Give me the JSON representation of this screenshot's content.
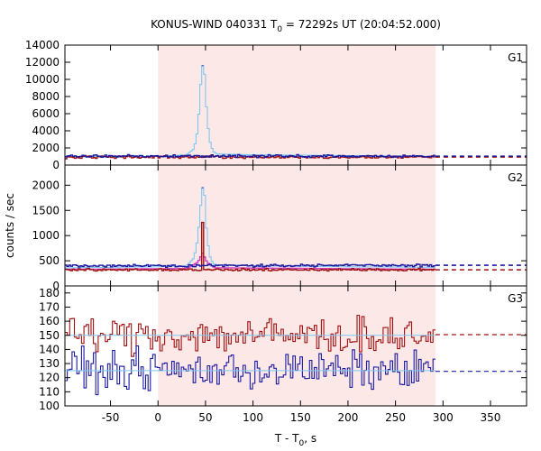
{
  "chart_data": {
    "type": "line",
    "title": {
      "prefix": "KONUS-WIND 040331 T",
      "sub": "0",
      "suffix": " = 72292s UT (20:04:52.000)"
    },
    "xlabel": {
      "prefix": "T - T",
      "sub": "0",
      "suffix": ", s"
    },
    "ylabel": "counts / sec",
    "x_ticks": [
      -50,
      0,
      50,
      100,
      150,
      200,
      250,
      300,
      350
    ],
    "xlim": [
      -98,
      388
    ],
    "highlight_interval": [
      0,
      292
    ],
    "colors": {
      "highlight": "#fde8e8",
      "profile": "#7ec8f0",
      "profile_dark": "#1f2ea8",
      "red": "#a01010",
      "blue": "#1a1aa0",
      "magenta": "#d040c0",
      "fit": "#7ec8f0"
    },
    "panels": [
      {
        "label": "G1",
        "ylim": [
          0,
          14000
        ],
        "y_ticks": [
          0,
          2000,
          4000,
          6000,
          8000,
          10000,
          12000,
          14000
        ],
        "background": 1000,
        "peak": {
          "t": 47,
          "value": 11600
        },
        "series": [
          {
            "color": "profile",
            "values": [
              [
                -98,
                1000
              ],
              [
                0,
                1000
              ],
              [
                30,
                1200
              ],
              [
                38,
                1900
              ],
              [
                42,
                4200
              ],
              [
                45,
                9400
              ],
              [
                47,
                11600
              ],
              [
                49,
                10600
              ],
              [
                51,
                6800
              ],
              [
                54,
                3000
              ],
              [
                58,
                1600
              ],
              [
                62,
                1300
              ],
              [
                100,
                1200
              ],
              [
                200,
                1100
              ],
              [
                292,
                1000
              ]
            ]
          },
          {
            "color": "red",
            "values": [
              [
                -98,
                920
              ],
              [
                292,
                940
              ]
            ],
            "extrapolated": [
              [
                292,
                940
              ],
              [
                388,
                940
              ]
            ]
          },
          {
            "color": "blue",
            "values": [
              [
                -98,
                1060
              ],
              [
                292,
                1040
              ]
            ],
            "extrapolated": [
              [
                292,
                1040
              ],
              [
                388,
                1040
              ]
            ]
          }
        ]
      },
      {
        "label": "G2",
        "ylim": [
          0,
          2400
        ],
        "y_ticks": [
          0,
          500,
          1000,
          1500,
          2000
        ],
        "background": 370,
        "peak": {
          "t": 47,
          "value": 1950
        },
        "series": [
          {
            "color": "profile",
            "values": [
              [
                -98,
                360
              ],
              [
                0,
                380
              ],
              [
                30,
                400
              ],
              [
                38,
                560
              ],
              [
                42,
                950
              ],
              [
                45,
                1600
              ],
              [
                47,
                1950
              ],
              [
                49,
                1800
              ],
              [
                51,
                1150
              ],
              [
                54,
                620
              ],
              [
                58,
                440
              ],
              [
                62,
                420
              ],
              [
                100,
                400
              ],
              [
                200,
                380
              ],
              [
                292,
                370
              ]
            ]
          },
          {
            "color": "magenta",
            "values": [
              [
                -98,
                330
              ],
              [
                30,
                345
              ],
              [
                42,
                470
              ],
              [
                47,
                650
              ],
              [
                52,
                460
              ],
              [
                60,
                360
              ],
              [
                292,
                330
              ]
            ]
          },
          {
            "color": "red",
            "values": [
              [
                -98,
                320
              ],
              [
                47,
                1260
              ],
              [
                292,
                320
              ]
            ],
            "extrapolated": [
              [
                292,
                320
              ],
              [
                388,
                320
              ]
            ]
          },
          {
            "color": "blue",
            "values": [
              [
                -98,
                400
              ],
              [
                292,
                410
              ]
            ],
            "extrapolated": [
              [
                292,
                410
              ],
              [
                388,
                410
              ]
            ]
          }
        ]
      },
      {
        "label": "G3",
        "ylim": [
          100,
          185
        ],
        "y_ticks": [
          100,
          110,
          120,
          130,
          140,
          150,
          160,
          170,
          180
        ],
        "series": [
          {
            "color": "red",
            "mean": 150,
            "extrapolated": [
              [
                292,
                150.5
              ],
              [
                388,
                150.5
              ]
            ]
          },
          {
            "color": "blue",
            "mean": 125,
            "extrapolated": [
              [
                292,
                124.5
              ],
              [
                388,
                124.5
              ]
            ]
          }
        ]
      }
    ]
  }
}
